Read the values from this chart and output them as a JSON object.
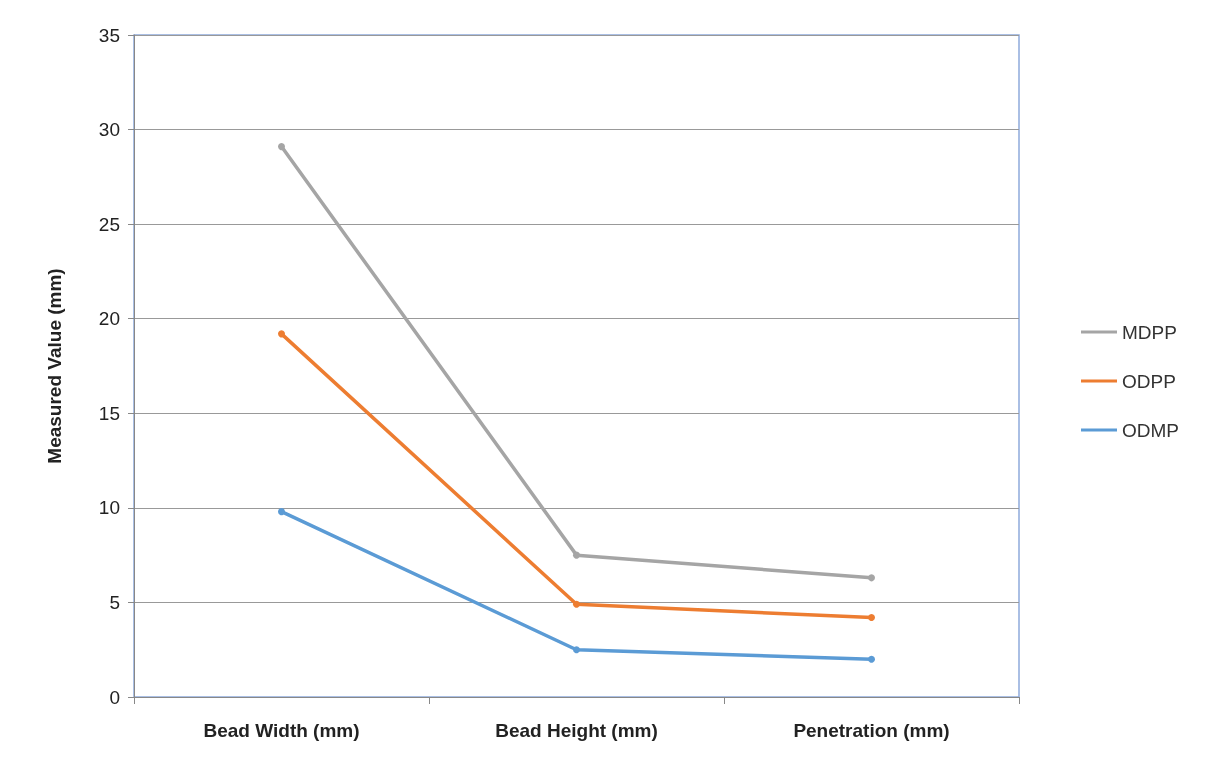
{
  "chart_data": {
    "type": "line",
    "ylabel": "Measured Value (mm)",
    "categories": [
      "Bead Width (mm)",
      "Bead Height (mm)",
      "Penetration (mm)"
    ],
    "series": [
      {
        "name": "MDPP",
        "color": "#a5a5a5",
        "values": [
          29.1,
          7.5,
          6.3
        ]
      },
      {
        "name": "ODPP",
        "color": "#ed7d31",
        "values": [
          19.2,
          4.9,
          4.2
        ]
      },
      {
        "name": "ODMP",
        "color": "#5b9bd5",
        "values": [
          9.8,
          2.5,
          2.0
        ]
      }
    ],
    "ylim": [
      0,
      35
    ],
    "yticks": [
      0,
      5,
      10,
      15,
      20,
      25,
      30,
      35
    ],
    "grid": "y",
    "legend": "right",
    "marker": "circle",
    "line_style": "solid"
  }
}
